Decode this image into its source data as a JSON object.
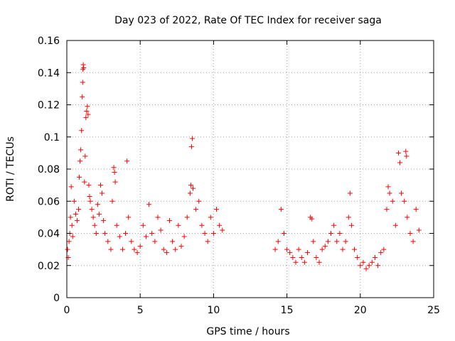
{
  "chart_data": {
    "type": "scatter",
    "title": "Day 023 of 2022, Rate Of TEC Index for receiver saga",
    "xlabel": "GPS time / hours",
    "ylabel": "ROTI / TECUs",
    "xlim": [
      0,
      25
    ],
    "ylim": [
      0,
      0.16
    ],
    "xticks": [
      0,
      5,
      10,
      15,
      20,
      25
    ],
    "xtick_labels": [
      "0",
      "5",
      "10",
      "15",
      "20",
      "25"
    ],
    "yticks": [
      0,
      0.02,
      0.04,
      0.06,
      0.08,
      0.1,
      0.12,
      0.14,
      0.16
    ],
    "ytick_labels": [
      "0",
      "0.02",
      "0.04",
      "0.06",
      "0.08",
      "0.1",
      "0.12",
      "0.14",
      "0.16"
    ],
    "grid": true,
    "marker": "+",
    "color": "#ff0000",
    "series": [
      {
        "points": [
          [
            0.05,
            0.03
          ],
          [
            0.1,
            0.025
          ],
          [
            0.15,
            0.035
          ],
          [
            0.2,
            0.04
          ],
          [
            0.25,
            0.05
          ],
          [
            0.3,
            0.069
          ],
          [
            0.35,
            0.045
          ],
          [
            0.4,
            0.038
          ],
          [
            0.5,
            0.06
          ],
          [
            0.6,
            0.052
          ],
          [
            0.7,
            0.048
          ],
          [
            0.8,
            0.055
          ],
          [
            0.85,
            0.075
          ],
          [
            0.9,
            0.085
          ],
          [
            0.95,
            0.092
          ],
          [
            1.0,
            0.104
          ],
          [
            1.05,
            0.125
          ],
          [
            1.08,
            0.134
          ],
          [
            1.1,
            0.142
          ],
          [
            1.12,
            0.145
          ],
          [
            1.15,
            0.143
          ],
          [
            1.2,
            0.072
          ],
          [
            1.25,
            0.088
          ],
          [
            1.3,
            0.112
          ],
          [
            1.35,
            0.116
          ],
          [
            1.4,
            0.119
          ],
          [
            1.45,
            0.114
          ],
          [
            1.5,
            0.07
          ],
          [
            1.55,
            0.063
          ],
          [
            1.6,
            0.06
          ],
          [
            1.7,
            0.055
          ],
          [
            1.8,
            0.05
          ],
          [
            1.9,
            0.045
          ],
          [
            2.0,
            0.04
          ],
          [
            2.1,
            0.058
          ],
          [
            2.2,
            0.052
          ],
          [
            2.3,
            0.07
          ],
          [
            2.4,
            0.065
          ],
          [
            2.5,
            0.048
          ],
          [
            2.6,
            0.04
          ],
          [
            2.8,
            0.035
          ],
          [
            3.0,
            0.03
          ],
          [
            3.1,
            0.06
          ],
          [
            3.2,
            0.081
          ],
          [
            3.25,
            0.078
          ],
          [
            3.3,
            0.072
          ],
          [
            3.4,
            0.045
          ],
          [
            3.6,
            0.038
          ],
          [
            3.8,
            0.03
          ],
          [
            4.0,
            0.04
          ],
          [
            4.1,
            0.085
          ],
          [
            4.2,
            0.05
          ],
          [
            4.4,
            0.035
          ],
          [
            4.6,
            0.03
          ],
          [
            4.8,
            0.028
          ],
          [
            5.0,
            0.032
          ],
          [
            5.2,
            0.045
          ],
          [
            5.4,
            0.038
          ],
          [
            5.6,
            0.058
          ],
          [
            5.8,
            0.04
          ],
          [
            6.0,
            0.035
          ],
          [
            6.2,
            0.05
          ],
          [
            6.4,
            0.042
          ],
          [
            6.6,
            0.03
          ],
          [
            6.8,
            0.028
          ],
          [
            7.0,
            0.048
          ],
          [
            7.2,
            0.035
          ],
          [
            7.4,
            0.03
          ],
          [
            7.6,
            0.045
          ],
          [
            7.8,
            0.032
          ],
          [
            8.0,
            0.038
          ],
          [
            8.2,
            0.05
          ],
          [
            8.4,
            0.065
          ],
          [
            8.45,
            0.07
          ],
          [
            8.5,
            0.094
          ],
          [
            8.55,
            0.099
          ],
          [
            8.6,
            0.068
          ],
          [
            8.8,
            0.055
          ],
          [
            9.0,
            0.06
          ],
          [
            9.2,
            0.045
          ],
          [
            9.4,
            0.04
          ],
          [
            9.6,
            0.035
          ],
          [
            9.8,
            0.05
          ],
          [
            10.0,
            0.04
          ],
          [
            10.2,
            0.055
          ],
          [
            10.4,
            0.045
          ],
          [
            10.6,
            0.042
          ],
          [
            14.2,
            0.03
          ],
          [
            14.4,
            0.035
          ],
          [
            14.6,
            0.055
          ],
          [
            14.8,
            0.04
          ],
          [
            15.0,
            0.03
          ],
          [
            15.2,
            0.028
          ],
          [
            15.4,
            0.025
          ],
          [
            15.6,
            0.022
          ],
          [
            15.8,
            0.03
          ],
          [
            16.0,
            0.025
          ],
          [
            16.2,
            0.022
          ],
          [
            16.4,
            0.028
          ],
          [
            16.6,
            0.05
          ],
          [
            16.7,
            0.049
          ],
          [
            16.8,
            0.035
          ],
          [
            17.0,
            0.025
          ],
          [
            17.2,
            0.022
          ],
          [
            17.4,
            0.03
          ],
          [
            17.6,
            0.032
          ],
          [
            17.8,
            0.035
          ],
          [
            18.0,
            0.04
          ],
          [
            18.2,
            0.045
          ],
          [
            18.4,
            0.035
          ],
          [
            18.6,
            0.04
          ],
          [
            18.8,
            0.03
          ],
          [
            19.0,
            0.035
          ],
          [
            19.2,
            0.05
          ],
          [
            19.3,
            0.065
          ],
          [
            19.4,
            0.045
          ],
          [
            19.6,
            0.03
          ],
          [
            19.8,
            0.025
          ],
          [
            20.0,
            0.02
          ],
          [
            20.2,
            0.022
          ],
          [
            20.4,
            0.018
          ],
          [
            20.6,
            0.02
          ],
          [
            20.8,
            0.022
          ],
          [
            21.0,
            0.025
          ],
          [
            21.2,
            0.02
          ],
          [
            21.4,
            0.028
          ],
          [
            21.6,
            0.03
          ],
          [
            21.8,
            0.055
          ],
          [
            21.9,
            0.069
          ],
          [
            22.0,
            0.065
          ],
          [
            22.2,
            0.06
          ],
          [
            22.4,
            0.045
          ],
          [
            22.6,
            0.09
          ],
          [
            22.7,
            0.084
          ],
          [
            22.8,
            0.065
          ],
          [
            23.0,
            0.06
          ],
          [
            23.1,
            0.091
          ],
          [
            23.15,
            0.088
          ],
          [
            23.2,
            0.05
          ],
          [
            23.4,
            0.04
          ],
          [
            23.6,
            0.035
          ],
          [
            23.8,
            0.055
          ],
          [
            24.0,
            0.042
          ]
        ]
      }
    ]
  }
}
